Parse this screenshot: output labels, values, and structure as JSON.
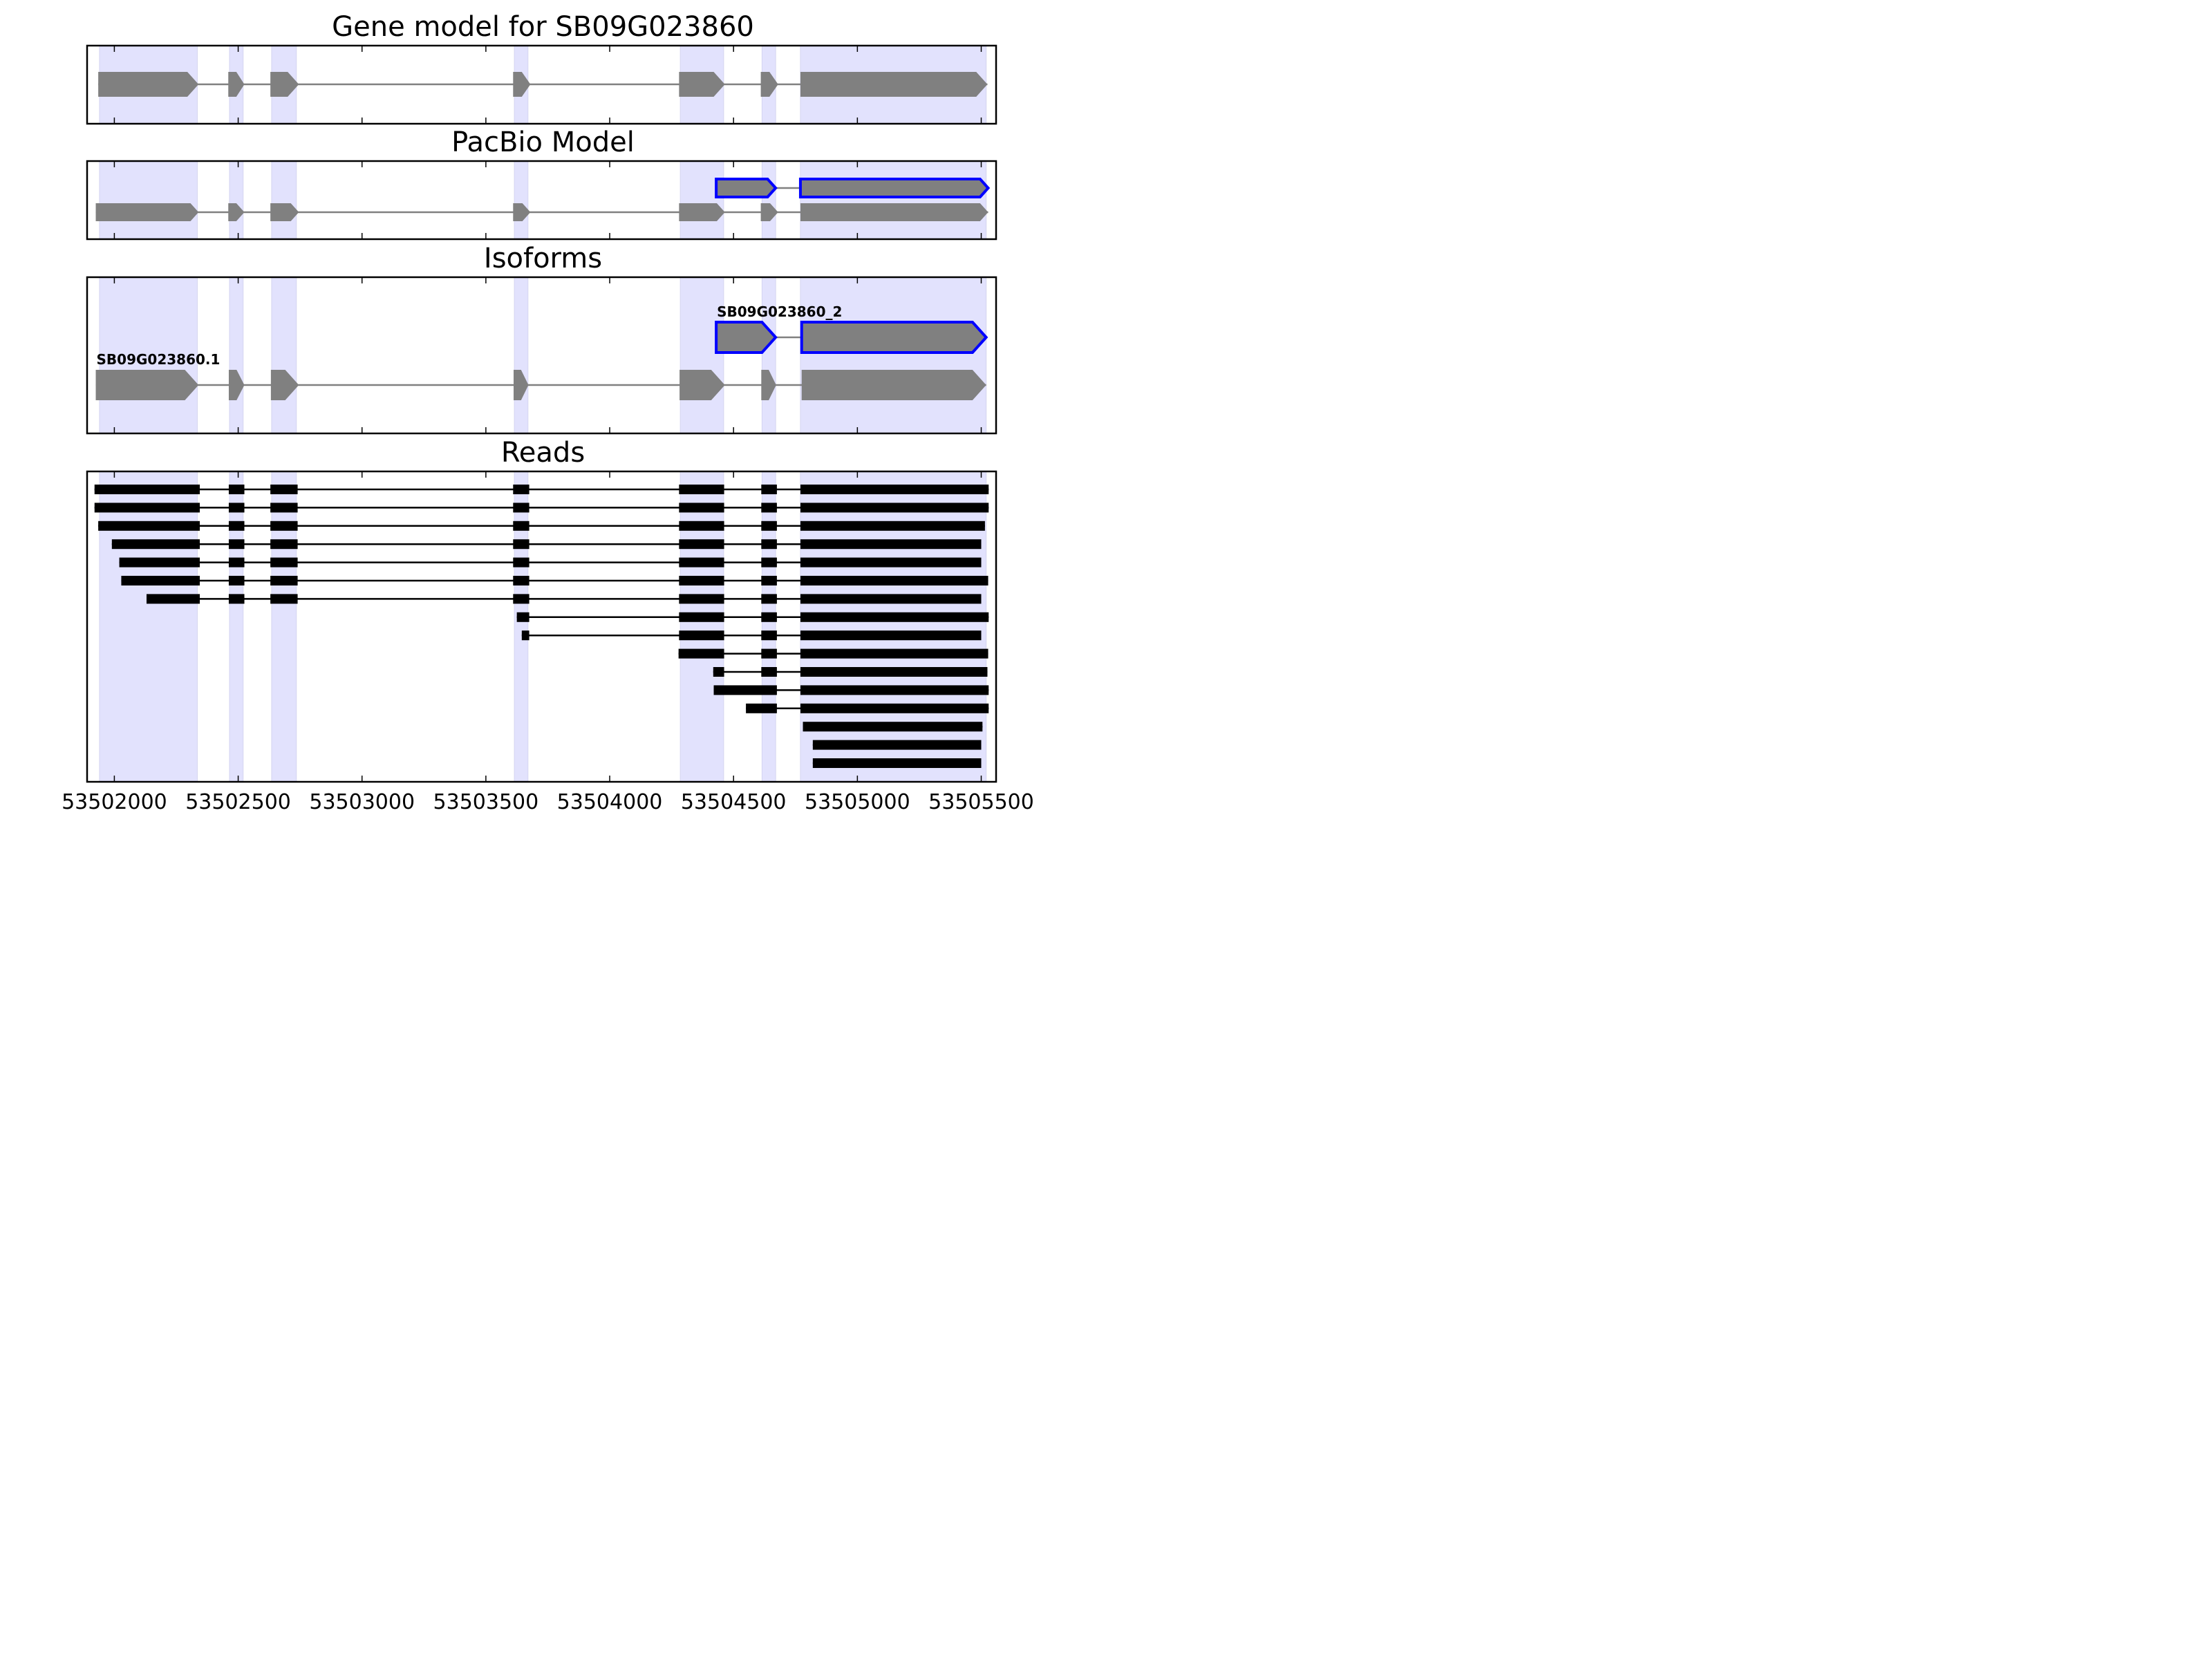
{
  "chart_data": {
    "type": "gene-track",
    "xlabel": "",
    "ylabel": "",
    "xlim": [
      53501890,
      53505560
    ],
    "x_ticks": [
      53502000,
      53502500,
      53503000,
      53503500,
      53504000,
      53504500,
      53505000,
      53505500
    ],
    "x_tick_labels": [
      "53502000",
      "53502500",
      "53503000",
      "53503500",
      "53504000",
      "53504500",
      "53505000",
      "53505500"
    ],
    "exon_highlights": [
      [
        53501940,
        53502335
      ],
      [
        53502465,
        53502520
      ],
      [
        53502635,
        53502735
      ],
      [
        53503615,
        53503670
      ],
      [
        53504285,
        53504460
      ],
      [
        53504615,
        53504670
      ],
      [
        53504770,
        53505520
      ]
    ],
    "colors": {
      "highlight": "#e2e2fd",
      "exon": "#808080",
      "outline": "#0000ff",
      "read": "#000000"
    },
    "panels": [
      {
        "title": "Gene model for SB09G023860",
        "rows": 1,
        "tracks": [
          {
            "label": "",
            "row": 0,
            "outlined": false,
            "exons": [
              [
                53501935,
                53502340
              ],
              [
                53502460,
                53502525
              ],
              [
                53502630,
                53502745
              ],
              [
                53503610,
                53503680
              ],
              [
                53504280,
                53504465
              ],
              [
                53504610,
                53504680
              ],
              [
                53504770,
                53505525
              ]
            ]
          }
        ]
      },
      {
        "title": "PacBio Model",
        "rows": 2,
        "tracks": [
          {
            "label": "",
            "row": 0,
            "outlined": true,
            "exons": [
              [
                53504430,
                53504670
              ],
              [
                53504770,
                53505528
              ]
            ]
          },
          {
            "label": "",
            "row": 1,
            "outlined": false,
            "exons": [
              [
                53501925,
                53502340
              ],
              [
                53502460,
                53502525
              ],
              [
                53502630,
                53502745
              ],
              [
                53503610,
                53503680
              ],
              [
                53504280,
                53504465
              ],
              [
                53504610,
                53504680
              ],
              [
                53504770,
                53505528
              ]
            ]
          }
        ]
      },
      {
        "title": "Isoforms",
        "rows": 2,
        "tracks": [
          {
            "label": "SB09G023860_2",
            "row": 0,
            "outlined": true,
            "exons": [
              [
                53504430,
                53504670
              ],
              [
                53504775,
                53505520
              ]
            ]
          },
          {
            "label": "SB09G023860.1",
            "row": 1,
            "outlined": false,
            "exons": [
              [
                53501925,
                53502340
              ],
              [
                53502462,
                53502525
              ],
              [
                53502632,
                53502745
              ],
              [
                53503612,
                53503672
              ],
              [
                53504282,
                53504465
              ],
              [
                53504612,
                53504672
              ],
              [
                53504775,
                53505520
              ]
            ]
          }
        ]
      },
      {
        "title": "Reads",
        "rows": 16,
        "reads": [
          [
            [
              53501920,
              53502345
            ],
            [
              53502462,
              53502525
            ],
            [
              53502630,
              53502740
            ],
            [
              53503610,
              53503675
            ],
            [
              53504280,
              53504462
            ],
            [
              53504612,
              53504675
            ],
            [
              53504770,
              53505530
            ]
          ],
          [
            [
              53501920,
              53502345
            ],
            [
              53502462,
              53502525
            ],
            [
              53502630,
              53502740
            ],
            [
              53503610,
              53503675
            ],
            [
              53504280,
              53504462
            ],
            [
              53504612,
              53504675
            ],
            [
              53504770,
              53505530
            ]
          ],
          [
            [
              53501935,
              53502345
            ],
            [
              53502462,
              53502525
            ],
            [
              53502630,
              53502740
            ],
            [
              53503610,
              53503675
            ],
            [
              53504280,
              53504462
            ],
            [
              53504612,
              53504675
            ],
            [
              53504770,
              53505515
            ]
          ],
          [
            [
              53501990,
              53502345
            ],
            [
              53502462,
              53502525
            ],
            [
              53502630,
              53502740
            ],
            [
              53503610,
              53503675
            ],
            [
              53504280,
              53504462
            ],
            [
              53504612,
              53504675
            ],
            [
              53504770,
              53505500
            ]
          ],
          [
            [
              53502020,
              53502345
            ],
            [
              53502462,
              53502525
            ],
            [
              53502630,
              53502740
            ],
            [
              53503610,
              53503675
            ],
            [
              53504280,
              53504462
            ],
            [
              53504612,
              53504675
            ],
            [
              53504770,
              53505500
            ]
          ],
          [
            [
              53502028,
              53502345
            ],
            [
              53502462,
              53502525
            ],
            [
              53502630,
              53502740
            ],
            [
              53503610,
              53503675
            ],
            [
              53504280,
              53504462
            ],
            [
              53504612,
              53504675
            ],
            [
              53504770,
              53505528
            ]
          ],
          [
            [
              53502130,
              53502345
            ],
            [
              53502462,
              53502525
            ],
            [
              53502630,
              53502740
            ],
            [
              53503610,
              53503675
            ],
            [
              53504280,
              53504462
            ],
            [
              53504612,
              53504675
            ],
            [
              53504770,
              53505500
            ]
          ],
          [
            [
              53503625,
              53503675
            ],
            [
              53504280,
              53504462
            ],
            [
              53504612,
              53504675
            ],
            [
              53504770,
              53505530
            ]
          ],
          [
            [
              53503645,
              53503675
            ],
            [
              53504280,
              53504462
            ],
            [
              53504612,
              53504675
            ],
            [
              53504770,
              53505500
            ]
          ],
          [
            [
              53504278,
              53504462
            ],
            [
              53504612,
              53504675
            ],
            [
              53504770,
              53505528
            ]
          ],
          [
            [
              53504418,
              53504462
            ],
            [
              53504612,
              53504675
            ],
            [
              53504770,
              53505525
            ]
          ],
          [
            [
              53504420,
              53504675
            ],
            [
              53504770,
              53505530
            ]
          ],
          [
            [
              53504550,
              53504675
            ],
            [
              53504770,
              53505530
            ]
          ],
          [
            [
              53504780,
              53505505
            ]
          ],
          [
            [
              53504820,
              53505500
            ]
          ],
          [
            [
              53504820,
              53505500
            ]
          ]
        ]
      }
    ]
  }
}
